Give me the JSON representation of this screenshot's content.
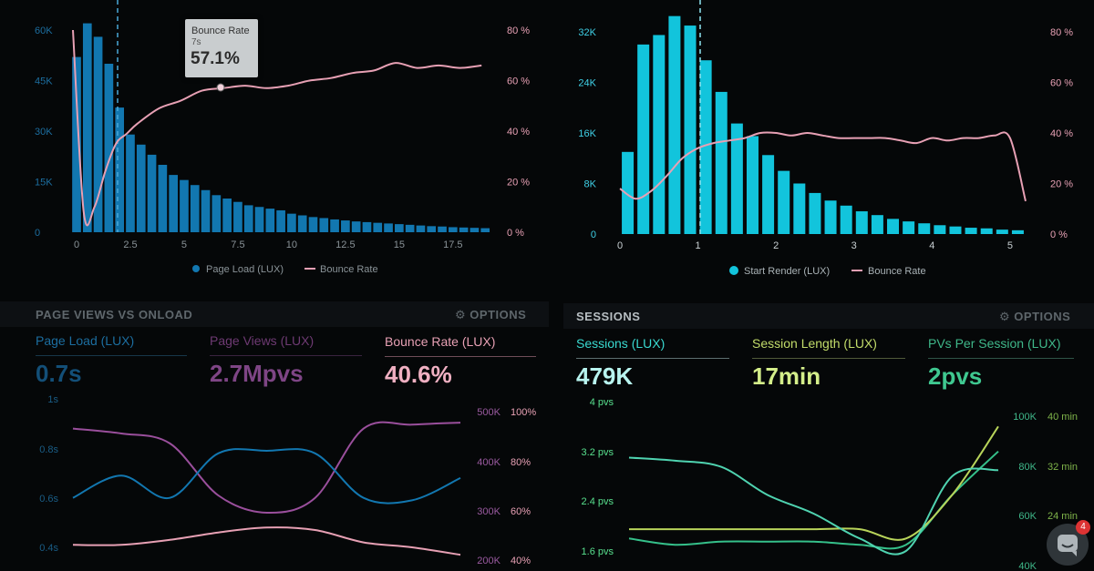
{
  "colors": {
    "blue": "#1277b0",
    "cyan": "#12c4dc",
    "pink": "#e7a0b4",
    "purple": "#9a4f9c",
    "green": "#35c08a",
    "lime": "#b8d45a"
  },
  "chart_data": [
    {
      "type": "bar",
      "title": "",
      "series": [
        {
          "name": "Page Load (LUX)",
          "type": "bar",
          "x": [
            0,
            0.5,
            1,
            1.5,
            2,
            2.5,
            3,
            3.5,
            4,
            4.5,
            5,
            5.5,
            6,
            6.5,
            7,
            7.5,
            8,
            8.5,
            9,
            9.5,
            10,
            10.5,
            11,
            11.5,
            12,
            12.5,
            13,
            13.5,
            14,
            14.5,
            15,
            15.5,
            16,
            16.5,
            17,
            17.5,
            18,
            18.5,
            19
          ],
          "values": [
            52000,
            62000,
            58000,
            50000,
            37000,
            29000,
            26000,
            23000,
            20000,
            17000,
            15500,
            14000,
            12500,
            11000,
            10000,
            9000,
            8000,
            7500,
            7000,
            6500,
            5500,
            5000,
            4500,
            4200,
            3800,
            3500,
            3200,
            3000,
            2800,
            2600,
            2400,
            2200,
            2000,
            1800,
            1700,
            1500,
            1400,
            1300,
            1200
          ]
        },
        {
          "name": "Bounce Rate",
          "type": "line",
          "x": [
            0,
            0.5,
            1,
            1.5,
            2,
            2.5,
            3,
            4,
            5,
            6,
            7,
            8,
            9,
            10,
            11,
            12,
            13,
            14,
            15,
            16,
            17,
            18,
            19
          ],
          "values": [
            80,
            8,
            10,
            24,
            35,
            39,
            43,
            49,
            52,
            56,
            57,
            58,
            57,
            58,
            60,
            61,
            63,
            64,
            67,
            65,
            66,
            65,
            66
          ]
        }
      ],
      "x_ticks": [
        "0",
        "2.5",
        "5",
        "7.5",
        "10",
        "12.5",
        "15",
        "17.5"
      ],
      "y_left_ticks": [
        "0",
        "15K",
        "30K",
        "45K",
        "60K"
      ],
      "y_right_ticks": [
        "0 %",
        "20 %",
        "40 %",
        "60 %",
        "80 %"
      ],
      "ylim_left": [
        0,
        60000
      ],
      "ylim_right": [
        0,
        80
      ],
      "xlim": [
        0,
        19.5
      ],
      "legend": "bottom"
    },
    {
      "type": "bar",
      "title": "",
      "series": [
        {
          "name": "Start Render (LUX)",
          "type": "bar",
          "x": [
            0.1,
            0.3,
            0.5,
            0.7,
            0.9,
            1.1,
            1.3,
            1.5,
            1.7,
            1.9,
            2.1,
            2.3,
            2.5,
            2.7,
            2.9,
            3.1,
            3.3,
            3.5,
            3.7,
            3.9,
            4.1,
            4.3,
            4.5,
            4.7,
            4.9,
            5.1
          ],
          "values": [
            13000,
            30000,
            31500,
            34500,
            33000,
            27500,
            22500,
            17500,
            15500,
            12500,
            10000,
            8000,
            6500,
            5300,
            4500,
            3600,
            3000,
            2400,
            2000,
            1700,
            1400,
            1200,
            1000,
            900,
            700,
            600
          ]
        },
        {
          "name": "Bounce Rate",
          "type": "line",
          "x": [
            0,
            0.2,
            0.4,
            0.6,
            0.8,
            1,
            1.2,
            1.4,
            1.6,
            1.8,
            2,
            2.2,
            2.4,
            2.6,
            2.8,
            3,
            3.2,
            3.4,
            3.6,
            3.8,
            4,
            4.2,
            4.4,
            4.6,
            4.8,
            5,
            5.2
          ],
          "values": [
            18,
            14,
            17,
            23,
            30,
            34,
            36,
            37,
            38,
            40,
            40,
            39,
            40,
            39,
            38,
            38,
            38,
            38,
            37,
            36,
            38,
            37,
            38,
            38,
            39,
            38,
            13
          ]
        }
      ],
      "x_ticks": [
        "0",
        "1",
        "2",
        "3",
        "4",
        "5"
      ],
      "y_left_ticks": [
        "0",
        "8K",
        "16K",
        "24K",
        "32K"
      ],
      "y_right_ticks": [
        "0 %",
        "20 %",
        "40 %",
        "60 %",
        "80 %"
      ],
      "ylim_left": [
        0,
        32000
      ],
      "ylim_right": [
        0,
        80
      ],
      "xlim": [
        0,
        5.2
      ],
      "legend": "bottom"
    },
    {
      "type": "line",
      "title": "PAGE VIEWS VS ONLOAD",
      "series": [
        {
          "name": "Page Load (LUX)",
          "x": [
            0,
            1,
            2,
            3,
            4,
            5,
            6,
            7,
            8
          ],
          "values": [
            0.6,
            0.69,
            0.6,
            0.78,
            0.79,
            0.78,
            0.6,
            0.59,
            0.68
          ]
        },
        {
          "name": "Page Views (LUX)",
          "x": [
            0,
            1,
            2,
            3,
            4,
            5,
            6,
            7,
            8
          ],
          "values": [
            440000,
            430000,
            410000,
            305000,
            270000,
            300000,
            440000,
            448000,
            452000
          ]
        },
        {
          "name": "Bounce Rate (LUX)",
          "x": [
            0,
            1,
            2,
            3,
            4,
            5,
            6,
            7,
            8
          ],
          "values": [
            41,
            41,
            43,
            46,
            48,
            47,
            42,
            40,
            37
          ]
        }
      ],
      "y_left_ticks": [
        "0.4s",
        "0.6s",
        "0.8s",
        "1s"
      ],
      "y_right_ticks_1": [
        "200K",
        "300K",
        "400K",
        "500K"
      ],
      "y_right_ticks_2": [
        "40%",
        "60%",
        "80%",
        "100%"
      ]
    },
    {
      "type": "line",
      "title": "SESSIONS",
      "series": [
        {
          "name": "Sessions (LUX)",
          "x": [
            0,
            1,
            2,
            3,
            4,
            5,
            6,
            7,
            8
          ],
          "values": [
            3.1,
            3.05,
            2.95,
            2.5,
            2.2,
            1.8,
            1.6,
            2.8,
            2.9
          ]
        },
        {
          "name": "Session Length (LUX)",
          "x": [
            0,
            1,
            2,
            3,
            4,
            5,
            6,
            7,
            8
          ],
          "values": [
            1.95,
            1.95,
            1.95,
            1.95,
            1.95,
            1.95,
            1.8,
            2.5,
            3.6
          ]
        },
        {
          "name": "PVs Per Session (LUX)",
          "x": [
            0,
            1,
            2,
            3,
            4,
            5,
            6,
            7,
            8
          ],
          "values": [
            1.8,
            1.7,
            1.75,
            1.75,
            1.75,
            1.7,
            1.7,
            2.5,
            3.2
          ]
        }
      ],
      "y_left_ticks": [
        "1.6 pvs",
        "2.4 pvs",
        "3.2 pvs",
        "4 pvs"
      ],
      "y_right_ticks_1": [
        "40K",
        "60K",
        "80K",
        "100K"
      ],
      "y_right_ticks_2": [
        "24 min",
        "32 min",
        "40 min"
      ]
    }
  ],
  "top_left": {
    "y_left_ticks": [
      "0",
      "15K",
      "30K",
      "45K",
      "60K"
    ],
    "y_right_ticks": [
      "0 %",
      "20 %",
      "40 %",
      "60 %",
      "80 %"
    ],
    "x_ticks": [
      "0",
      "2.5",
      "5",
      "7.5",
      "10",
      "12.5",
      "15",
      "17.5"
    ],
    "legend": [
      {
        "label": "Page Load (LUX)"
      },
      {
        "label": "Bounce Rate"
      }
    ],
    "tooltip": {
      "title": "Bounce Rate",
      "sub": "7s",
      "value": "57.1%"
    }
  },
  "top_right": {
    "y_left_ticks": [
      "0",
      "8K",
      "16K",
      "24K",
      "32K"
    ],
    "y_right_ticks": [
      "0 %",
      "20 %",
      "40 %",
      "60 %",
      "80 %"
    ],
    "x_ticks": [
      "0",
      "1",
      "2",
      "3",
      "4",
      "5"
    ],
    "legend": [
      {
        "label": "Start Render (LUX)"
      },
      {
        "label": "Bounce Rate"
      }
    ]
  },
  "page_views": {
    "title": "PAGE VIEWS VS ONLOAD",
    "options": "OPTIONS",
    "metrics": [
      {
        "label": "Page Load (LUX)",
        "value": "0.7s"
      },
      {
        "label": "Page Views (LUX)",
        "value": "2.7Mpvs"
      },
      {
        "label": "Bounce Rate (LUX)",
        "value": "40.6%"
      }
    ],
    "y_left_ticks": [
      "1s",
      "0.8s",
      "0.6s",
      "0.4s"
    ],
    "y_right_ticks_1": [
      "500K",
      "400K",
      "300K",
      "200K"
    ],
    "y_right_ticks_2": [
      "100%",
      "80%",
      "60%",
      "40%"
    ]
  },
  "sessions": {
    "title": "SESSIONS",
    "options": "OPTIONS",
    "metrics": [
      {
        "label": "Sessions (LUX)",
        "value": "479K"
      },
      {
        "label": "Session Length (LUX)",
        "value": "17min"
      },
      {
        "label": "PVs Per Session (LUX)",
        "value": "2pvs"
      }
    ],
    "y_left_ticks": [
      "4 pvs",
      "3.2 pvs",
      "2.4 pvs",
      "1.6 pvs"
    ],
    "y_right_ticks_1": [
      "100K",
      "80K",
      "60K",
      "40K"
    ],
    "y_right_ticks_2": [
      "40 min",
      "32 min",
      "24 min"
    ]
  },
  "chat": {
    "badge": "4"
  }
}
